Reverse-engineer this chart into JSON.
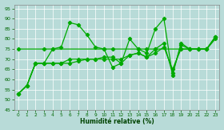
{
  "xlabel": "Humidité relative (%)",
  "xlim": [
    -0.5,
    23.5
  ],
  "ylim": [
    45,
    97
  ],
  "yticks": [
    45,
    50,
    55,
    60,
    65,
    70,
    75,
    80,
    85,
    90,
    95
  ],
  "xticks": [
    0,
    1,
    2,
    3,
    4,
    5,
    6,
    7,
    8,
    9,
    10,
    11,
    12,
    13,
    14,
    15,
    16,
    17,
    18,
    19,
    20,
    21,
    22,
    23
  ],
  "background_color": "#b8dbd8",
  "grid_color": "#ffffff",
  "line_color": "#00aa00",
  "line1_x": [
    0,
    1,
    2,
    3,
    4,
    5,
    6,
    7,
    8,
    9,
    10,
    11,
    12,
    13,
    14,
    15,
    16,
    17,
    18,
    19,
    20,
    21,
    22,
    23
  ],
  "line1_y": [
    53,
    57,
    68,
    68,
    75,
    76,
    88,
    87,
    82,
    76,
    75,
    66,
    68,
    80,
    75,
    73,
    85,
    90,
    62,
    78,
    75,
    75,
    75,
    81
  ],
  "line2_x": [
    0,
    3,
    4,
    10,
    11,
    14,
    15,
    16,
    19,
    20,
    21,
    22,
    23
  ],
  "line2_y": [
    75,
    75,
    75,
    75,
    75,
    75,
    75,
    75,
    75,
    75,
    75,
    75,
    81
  ],
  "line3_x": [
    0,
    1,
    2,
    3,
    4,
    5,
    6,
    7,
    8,
    9,
    10,
    11,
    12,
    13,
    14,
    15,
    16,
    17,
    18,
    19,
    20,
    21,
    22,
    23
  ],
  "line3_y": [
    53,
    57,
    68,
    68,
    68,
    68,
    70,
    70,
    70,
    70,
    71,
    71,
    68,
    72,
    73,
    71,
    75,
    78,
    63,
    77,
    75,
    75,
    75,
    81
  ],
  "line4_x": [
    0,
    1,
    2,
    3,
    4,
    5,
    6,
    7,
    8,
    9,
    10,
    11,
    12,
    13,
    14,
    15,
    16,
    17,
    18,
    19,
    20,
    21,
    22,
    23
  ],
  "line4_y": [
    53,
    57,
    68,
    68,
    68,
    68,
    68,
    69,
    70,
    70,
    70,
    70,
    70,
    72,
    73,
    71,
    73,
    76,
    65,
    75,
    75,
    75,
    75,
    80
  ]
}
